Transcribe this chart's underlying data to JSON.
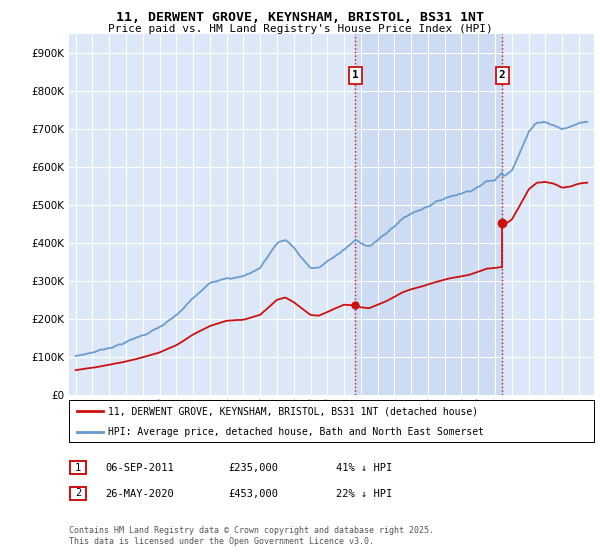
{
  "title_line1": "11, DERWENT GROVE, KEYNSHAM, BRISTOL, BS31 1NT",
  "title_line2": "Price paid vs. HM Land Registry's House Price Index (HPI)",
  "background_color": "#ffffff",
  "plot_bg_color": "#dce8f8",
  "shade_color": "#c8d8f0",
  "grid_color": "#ffffff",
  "hpi_color": "#6699cc",
  "price_color": "#cc1111",
  "vline_color": "#cc1111",
  "ylim_max": 950000,
  "purchase1_year": 2011.67,
  "purchase1_price": 235000,
  "purchase2_year": 2020.42,
  "purchase2_price": 453000,
  "legend1": "11, DERWENT GROVE, KEYNSHAM, BRISTOL, BS31 1NT (detached house)",
  "legend2": "HPI: Average price, detached house, Bath and North East Somerset",
  "footer": "Contains HM Land Registry data © Crown copyright and database right 2025.\nThis data is licensed under the Open Government Licence v3.0.",
  "table_row1": [
    "1",
    "06-SEP-2011",
    "£235,000",
    "41% ↓ HPI"
  ],
  "table_row2": [
    "2",
    "26-MAY-2020",
    "£453,000",
    "22% ↓ HPI"
  ]
}
